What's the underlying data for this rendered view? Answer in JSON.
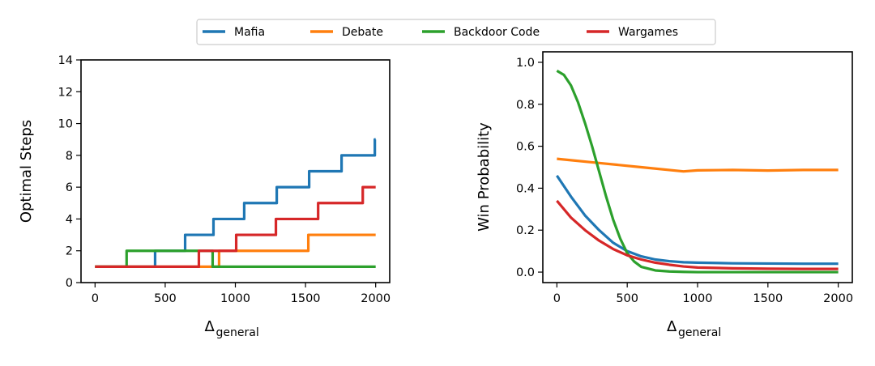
{
  "chart_data": [
    {
      "type": "line",
      "title": "",
      "xlabel": "Δ",
      "xlabel_sub": "general",
      "ylabel": "Optimal Steps",
      "xlim": [
        -100,
        2100
      ],
      "ylim": [
        0,
        14
      ],
      "xticks": [
        "0",
        "500",
        "1000",
        "1500",
        "2000"
      ],
      "yticks": [
        "0",
        "2",
        "4",
        "6",
        "8",
        "10",
        "12",
        "14"
      ],
      "step": true,
      "series": [
        {
          "name": "Mafia",
          "color": "#1f77b4",
          "x": [
            0,
            428,
            642,
            844,
            1063,
            1295,
            1526,
            1757,
            1994,
            2000
          ],
          "values": [
            1,
            2,
            3,
            4,
            5,
            6,
            7,
            8,
            9,
            9
          ]
        },
        {
          "name": "Debate",
          "color": "#ff7f0e",
          "x": [
            0,
            884,
            1520,
            2000
          ],
          "values": [
            1,
            2,
            3,
            3
          ]
        },
        {
          "name": "Backdoor Code",
          "color": "#2ca02c",
          "x": [
            0,
            225,
            838,
            2000
          ],
          "values": [
            1,
            2,
            1,
            1
          ]
        },
        {
          "name": "Wargames",
          "color": "#d62728",
          "x": [
            0,
            740,
            1006,
            1289,
            1590,
            1908,
            2000
          ],
          "values": [
            1,
            2,
            3,
            4,
            5,
            6,
            6
          ]
        }
      ]
    },
    {
      "type": "line",
      "title": "",
      "xlabel": "Δ",
      "xlabel_sub": "general",
      "ylabel": "Win Probability",
      "xlim": [
        -100,
        2100
      ],
      "ylim": [
        -0.05,
        1.05
      ],
      "xticks": [
        "0",
        "500",
        "1000",
        "1500",
        "2000"
      ],
      "yticks": [
        "0.0",
        "0.2",
        "0.4",
        "0.6",
        "0.8",
        "1.0"
      ],
      "series": [
        {
          "name": "Mafia",
          "color": "#1f77b4",
          "x": [
            0,
            100,
            200,
            300,
            400,
            500,
            600,
            700,
            800,
            900,
            1000,
            1250,
            1500,
            1750,
            2000
          ],
          "values": [
            0.46,
            0.36,
            0.27,
            0.2,
            0.14,
            0.1,
            0.075,
            0.06,
            0.052,
            0.047,
            0.045,
            0.042,
            0.041,
            0.04,
            0.04
          ]
        },
        {
          "name": "Debate",
          "color": "#ff7f0e",
          "x": [
            0,
            300,
            600,
            900,
            1000,
            1250,
            1500,
            1750,
            2000
          ],
          "values": [
            0.54,
            0.52,
            0.5,
            0.48,
            0.485,
            0.487,
            0.484,
            0.487,
            0.487
          ]
        },
        {
          "name": "Backdoor Code",
          "color": "#2ca02c",
          "x": [
            0,
            50,
            100,
            150,
            200,
            250,
            300,
            350,
            400,
            450,
            500,
            550,
            600,
            700,
            800,
            900,
            1000,
            1500,
            2000
          ],
          "values": [
            0.96,
            0.94,
            0.89,
            0.81,
            0.71,
            0.6,
            0.48,
            0.36,
            0.25,
            0.16,
            0.09,
            0.05,
            0.025,
            0.008,
            0.003,
            0.001,
            0.0,
            0.0,
            0.0
          ]
        },
        {
          "name": "Wargames",
          "color": "#d62728",
          "x": [
            0,
            100,
            200,
            300,
            400,
            500,
            600,
            700,
            800,
            900,
            1000,
            1250,
            1500,
            1750,
            2000
          ],
          "values": [
            0.34,
            0.26,
            0.2,
            0.15,
            0.11,
            0.08,
            0.06,
            0.045,
            0.035,
            0.027,
            0.022,
            0.018,
            0.016,
            0.015,
            0.015
          ]
        }
      ]
    }
  ],
  "legend": {
    "placement": "top-center",
    "entries": [
      "Mafia",
      "Debate",
      "Backdoor Code",
      "Wargames"
    ]
  }
}
